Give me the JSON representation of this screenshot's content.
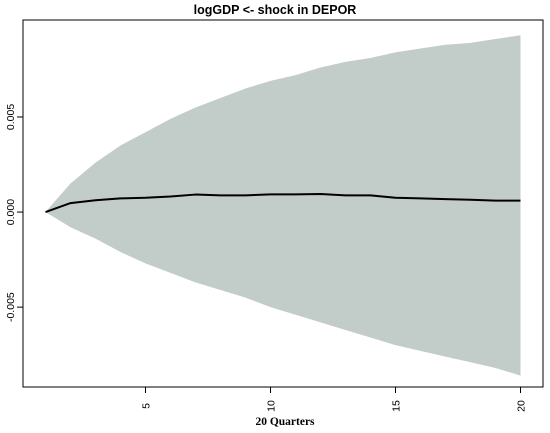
{
  "chart_data": {
    "type": "area",
    "title": "logGDP <- shock in DEPOR",
    "xlabel": "20 Quarters",
    "ylabel": "",
    "xlim": [
      0.1,
      20.9
    ],
    "ylim": [
      -0.0092,
      0.0101
    ],
    "x_ticks": [
      5,
      10,
      15,
      20
    ],
    "y_ticks": [
      -0.005,
      0.0,
      0.005
    ],
    "y_tick_labels": [
      "-0.005",
      "0.000",
      "0.005"
    ],
    "grid": false,
    "legend": "none",
    "x": [
      1,
      2,
      3,
      4,
      5,
      6,
      7,
      8,
      9,
      10,
      11,
      12,
      13,
      14,
      15,
      16,
      17,
      18,
      19,
      20
    ],
    "series": [
      {
        "role": "estimate",
        "values": [
          0.0,
          0.00047,
          0.00062,
          0.00072,
          0.00075,
          0.00082,
          0.00092,
          0.00088,
          0.00088,
          0.00093,
          0.00093,
          0.00095,
          0.00088,
          0.00088,
          0.00075,
          0.00072,
          0.00068,
          0.00065,
          0.0006,
          0.0006
        ]
      },
      {
        "role": "upper",
        "values": [
          0.0,
          0.0015,
          0.0026,
          0.0035,
          0.0042,
          0.0049,
          0.0055,
          0.006,
          0.0065,
          0.0069,
          0.0072,
          0.0076,
          0.0079,
          0.0081,
          0.0084,
          0.0086,
          0.0088,
          0.0089,
          0.0091,
          0.0093
        ]
      },
      {
        "role": "lower",
        "values": [
          0.0,
          -0.0008,
          -0.0014,
          -0.0021,
          -0.0027,
          -0.0032,
          -0.0037,
          -0.0041,
          -0.0045,
          -0.005,
          -0.0054,
          -0.0058,
          -0.0062,
          -0.0066,
          -0.007,
          -0.0073,
          -0.0076,
          -0.0079,
          -0.0082,
          -0.0086
        ]
      }
    ],
    "colors": {
      "band": "#c2ccc8",
      "line": "#000000",
      "axis": "#000000"
    }
  }
}
